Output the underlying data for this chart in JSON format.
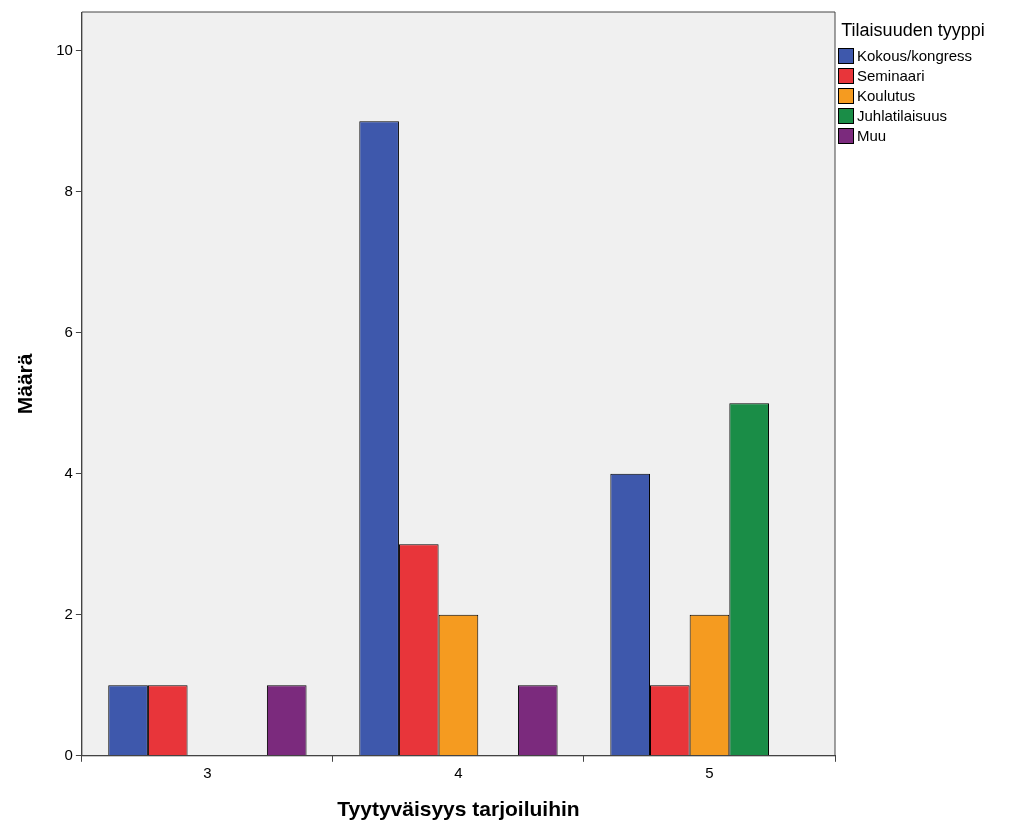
{
  "chart_data": {
    "type": "bar",
    "xlabel": "Tyytyväisyys tarjoiluihin",
    "ylabel": "Määrä",
    "legend_title": "Tilaisuuden tyyppi",
    "legend": "top right",
    "grid": false,
    "categories": [
      "3",
      "4",
      "5"
    ],
    "series": [
      {
        "name": "Kokous/kongress",
        "color": "#3e58ac",
        "values": [
          1,
          9,
          4
        ]
      },
      {
        "name": "Seminaari",
        "color": "#e8353a",
        "values": [
          1,
          3,
          1
        ]
      },
      {
        "name": "Koulutus",
        "color": "#f59b20",
        "values": [
          null,
          2,
          2
        ]
      },
      {
        "name": "Juhlatilaisuus",
        "color": "#1a8d47",
        "values": [
          null,
          null,
          5
        ]
      },
      {
        "name": "Muu",
        "color": "#7b2a7d",
        "values": [
          1,
          1,
          null
        ]
      }
    ],
    "ylim": [
      0,
      10.55
    ],
    "yticks": [
      0,
      2,
      4,
      6,
      8,
      10
    ]
  }
}
